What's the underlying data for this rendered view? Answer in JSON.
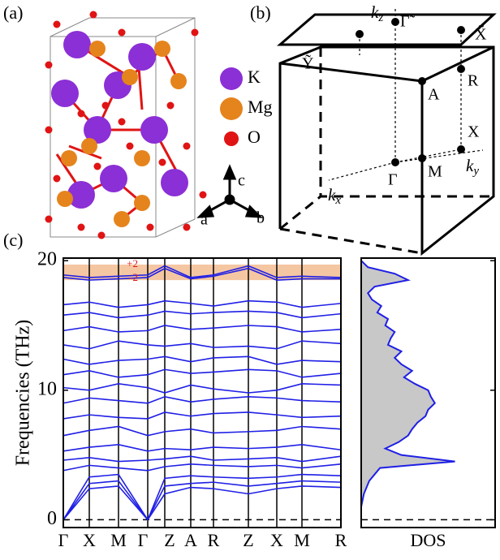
{
  "panels": {
    "a": "(a)",
    "b": "(b)",
    "c": "(c)"
  },
  "legend": [
    {
      "label": "K",
      "color": "#8b2fd6"
    },
    {
      "label": "Mg",
      "color": "#e5841c"
    },
    {
      "label": "O",
      "color": "#e01414"
    }
  ],
  "lattice_axes": [
    "a",
    "b",
    "c"
  ],
  "brillouin_zone": {
    "points": [
      "Γ̃",
      "X̃",
      "Ỹ",
      "R",
      "A",
      "X",
      "Γ",
      "M"
    ],
    "axes": [
      {
        "main": "k",
        "sub": "z"
      },
      {
        "main": "k",
        "sub": "x"
      },
      {
        "main": "k",
        "sub": "y"
      }
    ]
  },
  "chart_data": [
    {
      "type": "line",
      "y_label": "Frequencies (THz)",
      "color": "#1f1fe6",
      "x": [
        0,
        32,
        68,
        104,
        125,
        157,
        185,
        228,
        263,
        294,
        342
      ],
      "xlim": [
        0,
        342
      ],
      "xticks": [
        {
          "value": 0,
          "label": "Γ"
        },
        {
          "value": 32,
          "label": "X"
        },
        {
          "value": 68,
          "label": "M"
        },
        {
          "value": 104,
          "label": "Γ"
        },
        {
          "value": 125,
          "label": "Z"
        },
        {
          "value": 157,
          "label": "A"
        },
        {
          "value": 185,
          "label": "R"
        },
        {
          "value": 228,
          "label": "Z"
        },
        {
          "value": 263,
          "label": "X"
        },
        {
          "value": 294,
          "label": "M"
        },
        {
          "value": 342,
          "label": "R"
        }
      ],
      "ylim": [
        -0.6,
        20.2
      ],
      "yticks": [
        0,
        10,
        20
      ],
      "reference_line": 0,
      "highlight": {
        "range": [
          18.5,
          19.7
        ],
        "color": "#f5c6a2"
      },
      "annotations": [
        "+2",
        "-2"
      ],
      "annotation_color": "#e01414",
      "series": [
        {
          "values": [
            0,
            2.4,
            2.6,
            0,
            2.0,
            2.5,
            2.4,
            2.0,
            2.4,
            2.6,
            2.5
          ]
        },
        {
          "values": [
            0,
            2.8,
            3.0,
            0,
            2.6,
            2.8,
            2.9,
            2.6,
            2.8,
            3.0,
            2.9
          ]
        },
        {
          "values": [
            0,
            3.3,
            3.5,
            0,
            3.2,
            3.4,
            3.3,
            3.2,
            3.3,
            3.5,
            3.4
          ]
        },
        {
          "values": [
            3.8,
            4.2,
            4.0,
            3.8,
            4.1,
            4.3,
            4.2,
            4.1,
            4.2,
            4.0,
            4.3
          ]
        },
        {
          "values": [
            4.6,
            4.8,
            4.5,
            4.6,
            4.7,
            4.9,
            4.6,
            4.7,
            4.8,
            4.5,
            4.9
          ]
        },
        {
          "values": [
            5.3,
            5.6,
            5.8,
            5.3,
            5.5,
            5.4,
            5.6,
            5.5,
            5.6,
            5.8,
            5.4
          ]
        },
        {
          "values": [
            6.5,
            6.9,
            7.2,
            6.5,
            6.8,
            7.0,
            6.7,
            6.8,
            6.9,
            7.2,
            7.0
          ]
        },
        {
          "values": [
            7.8,
            8.1,
            7.9,
            7.8,
            8.3,
            8.0,
            8.2,
            8.3,
            8.1,
            7.9,
            8.0
          ]
        },
        {
          "values": [
            9.0,
            9.4,
            9.2,
            9.0,
            9.5,
            9.1,
            9.3,
            9.5,
            9.4,
            9.2,
            9.1
          ]
        },
        {
          "values": [
            10.2,
            10.0,
            10.5,
            10.2,
            9.8,
            10.4,
            10.1,
            9.8,
            10.0,
            10.5,
            10.4
          ]
        },
        {
          "values": [
            11.2,
            11.5,
            11.0,
            11.2,
            11.6,
            11.3,
            11.4,
            11.6,
            11.5,
            11.0,
            11.3
          ]
        },
        {
          "values": [
            12.4,
            12.0,
            12.3,
            12.4,
            12.6,
            12.2,
            12.5,
            12.6,
            12.0,
            12.3,
            12.2
          ]
        },
        {
          "values": [
            13.5,
            13.2,
            13.8,
            13.5,
            13.4,
            13.6,
            13.3,
            13.4,
            13.2,
            13.8,
            13.6
          ]
        },
        {
          "values": [
            14.6,
            14.9,
            14.5,
            14.6,
            15.0,
            14.7,
            14.8,
            15.0,
            14.9,
            14.5,
            14.7
          ]
        },
        {
          "values": [
            15.8,
            16.0,
            15.6,
            15.8,
            16.1,
            15.9,
            16.0,
            16.1,
            16.0,
            15.6,
            15.9
          ]
        },
        {
          "values": [
            16.6,
            16.8,
            16.4,
            16.6,
            16.9,
            16.7,
            16.5,
            16.9,
            16.8,
            16.4,
            16.7
          ]
        },
        {
          "values": [
            18.7,
            18.5,
            18.6,
            18.7,
            19.4,
            18.6,
            18.8,
            19.4,
            18.5,
            18.6,
            18.6
          ]
        },
        {
          "values": [
            18.9,
            18.7,
            18.8,
            18.9,
            19.6,
            18.7,
            18.9,
            19.6,
            18.7,
            18.8,
            18.7
          ]
        }
      ]
    },
    {
      "type": "area",
      "x_label": "DOS",
      "color": "#1f1fe6",
      "fill": "#c8c8c8",
      "xlim": [
        0,
        1
      ],
      "ylim": [
        -0.6,
        20.2
      ],
      "yticks": [
        0,
        10,
        20
      ],
      "reference_line": 0,
      "y": [
        0,
        0.5,
        1,
        1.5,
        2,
        2.5,
        3,
        3.5,
        4,
        4.5,
        5,
        5.5,
        6,
        6.5,
        7,
        7.5,
        8,
        8.5,
        9,
        9.5,
        10,
        10.5,
        11,
        11.5,
        12,
        12.5,
        13,
        13.5,
        14,
        14.5,
        15,
        15.5,
        16,
        16.5,
        17,
        17.5,
        18,
        18.5,
        19,
        19.5,
        20
      ],
      "values": [
        0,
        0,
        0,
        0.01,
        0.02,
        0.04,
        0.06,
        0.1,
        0.14,
        0.7,
        0.3,
        0.18,
        0.28,
        0.35,
        0.38,
        0.42,
        0.48,
        0.5,
        0.55,
        0.52,
        0.5,
        0.4,
        0.32,
        0.38,
        0.3,
        0.25,
        0.3,
        0.2,
        0.22,
        0.25,
        0.18,
        0.2,
        0.12,
        0.15,
        0.08,
        0.05,
        0.1,
        0.35,
        0.25,
        0.05,
        0
      ]
    }
  ]
}
